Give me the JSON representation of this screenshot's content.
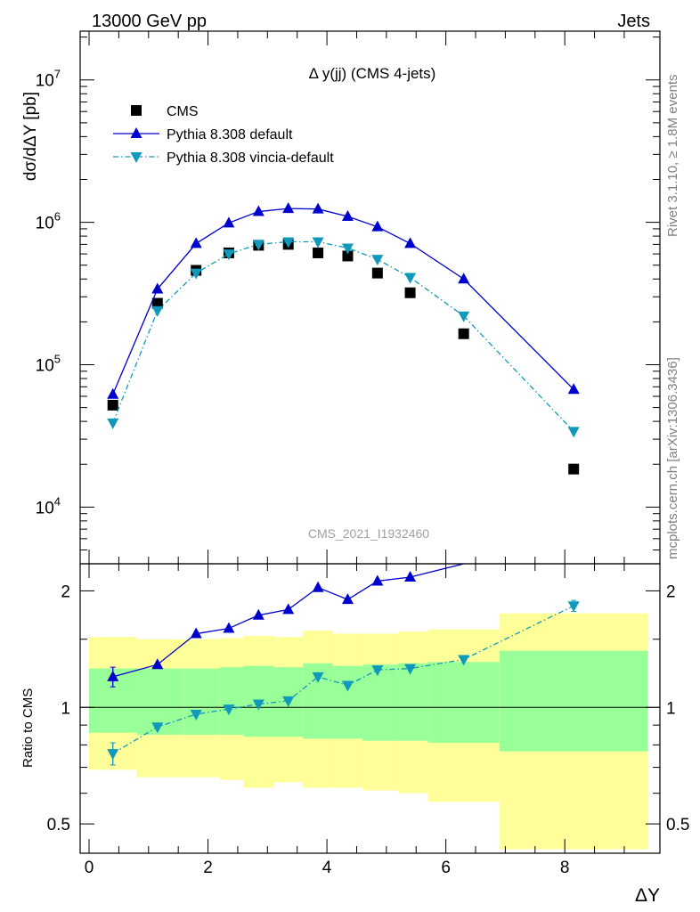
{
  "header": {
    "left": "13000 GeV pp",
    "right": "Jets"
  },
  "side_labels": {
    "rivet": "Rivet 3.1.10, ≥ 1.8M events",
    "mcplots": "mcplots.cern.ch [arXiv:1306.3436]"
  },
  "chart_data": [
    {
      "type": "scatter",
      "panel": "main",
      "title": "Δ y(jj) (CMS 4-jets)",
      "watermark": "CMS_2021_I1932460",
      "ylabel": "dσ/dΔY [pb]",
      "xlabel": "",
      "yscale": "log",
      "xlim": [
        -0.15,
        9.6
      ],
      "ylim": [
        4000,
        22000000
      ],
      "yticks": [
        {
          "value": 10000,
          "base": "10",
          "exp": "4"
        },
        {
          "value": 100000,
          "base": "10",
          "exp": "5"
        },
        {
          "value": 1000000,
          "base": "10",
          "exp": "6"
        },
        {
          "value": 10000000,
          "base": "10",
          "exp": "7"
        }
      ],
      "legend_position": "top-left",
      "series": [
        {
          "name": "CMS",
          "style": "points",
          "marker": "square",
          "color": "#000000",
          "x": [
            0.4,
            1.15,
            1.8,
            2.35,
            2.85,
            3.35,
            3.85,
            4.35,
            4.85,
            5.4,
            6.3,
            8.15
          ],
          "y": [
            52000,
            270000,
            460000,
            610000,
            690000,
            700000,
            610000,
            580000,
            440000,
            320000,
            165000,
            18500
          ]
        },
        {
          "name": "Pythia 8.308 default",
          "style": "solid",
          "marker": "triangle-up",
          "color": "#0000cc",
          "x": [
            0.4,
            1.15,
            1.8,
            2.35,
            2.85,
            3.35,
            3.85,
            4.35,
            4.85,
            5.4,
            6.3,
            8.15
          ],
          "y": [
            62000,
            340000,
            710000,
            990000,
            1190000,
            1250000,
            1240000,
            1100000,
            930000,
            710000,
            400000,
            67000
          ]
        },
        {
          "name": "Pythia 8.308 vincia-default",
          "style": "dashdot",
          "marker": "triangle-down",
          "color": "#1199bb",
          "x": [
            0.4,
            1.15,
            1.8,
            2.35,
            2.85,
            3.35,
            3.85,
            4.35,
            4.85,
            5.4,
            6.3,
            8.15
          ],
          "y": [
            39000,
            240000,
            440000,
            600000,
            700000,
            730000,
            730000,
            660000,
            550000,
            410000,
            220000,
            34000
          ]
        }
      ]
    },
    {
      "type": "scatter",
      "panel": "ratio",
      "ylabel": "Ratio to CMS",
      "xlabel": "ΔY",
      "yscale": "log",
      "xlim": [
        -0.15,
        9.6
      ],
      "ylim": [
        0.42,
        2.35
      ],
      "xticks": [
        0,
        2,
        4,
        6,
        8
      ],
      "yticks": [
        0.5,
        1,
        2
      ],
      "bands": {
        "bins": [
          {
            "lo": 0.0,
            "hi": 0.8,
            "y_lo": 0.69,
            "y_hi": 1.52,
            "g_lo": 0.86,
            "g_hi": 1.26
          },
          {
            "lo": 0.8,
            "hi": 1.6,
            "y_lo": 0.66,
            "y_hi": 1.5,
            "g_lo": 0.85,
            "g_hi": 1.26
          },
          {
            "lo": 1.6,
            "hi": 2.2,
            "y_lo": 0.66,
            "y_hi": 1.5,
            "g_lo": 0.85,
            "g_hi": 1.26
          },
          {
            "lo": 2.2,
            "hi": 2.6,
            "y_lo": 0.65,
            "y_hi": 1.51,
            "g_lo": 0.85,
            "g_hi": 1.27
          },
          {
            "lo": 2.6,
            "hi": 3.1,
            "y_lo": 0.62,
            "y_hi": 1.53,
            "g_lo": 0.84,
            "g_hi": 1.28
          },
          {
            "lo": 3.1,
            "hi": 3.6,
            "y_lo": 0.64,
            "y_hi": 1.52,
            "g_lo": 0.84,
            "g_hi": 1.27
          },
          {
            "lo": 3.6,
            "hi": 4.1,
            "y_lo": 0.62,
            "y_hi": 1.58,
            "g_lo": 0.83,
            "g_hi": 1.3
          },
          {
            "lo": 4.1,
            "hi": 4.6,
            "y_lo": 0.62,
            "y_hi": 1.55,
            "g_lo": 0.83,
            "g_hi": 1.28
          },
          {
            "lo": 4.6,
            "hi": 5.2,
            "y_lo": 0.61,
            "y_hi": 1.55,
            "g_lo": 0.82,
            "g_hi": 1.29
          },
          {
            "lo": 5.2,
            "hi": 5.7,
            "y_lo": 0.6,
            "y_hi": 1.57,
            "g_lo": 0.82,
            "g_hi": 1.3
          },
          {
            "lo": 5.7,
            "hi": 6.9,
            "y_lo": 0.57,
            "y_hi": 1.59,
            "g_lo": 0.81,
            "g_hi": 1.31
          },
          {
            "lo": 6.9,
            "hi": 9.4,
            "y_lo": 0.43,
            "y_hi": 1.75,
            "g_lo": 0.77,
            "g_hi": 1.4
          }
        ],
        "outer_color": "#ffff99",
        "inner_color": "#99ff99"
      },
      "series": [
        {
          "name": "Pythia 8.308 default",
          "style": "solid",
          "marker": "triangle-up",
          "color": "#0000cc",
          "x": [
            0.4,
            1.15,
            1.8,
            2.35,
            2.85,
            3.35,
            3.85,
            4.35,
            4.85,
            5.4,
            6.3
          ],
          "y": [
            1.2,
            1.29,
            1.55,
            1.6,
            1.73,
            1.79,
            2.04,
            1.9,
            2.12,
            2.17,
            2.36
          ],
          "err": [
            0.07,
            0,
            0,
            0,
            0,
            0,
            0,
            0,
            0,
            0,
            0
          ]
        },
        {
          "name": "Pythia 8.308 vincia-default",
          "style": "dashdot",
          "marker": "triangle-down",
          "color": "#1199bb",
          "x": [
            0.4,
            1.15,
            1.8,
            2.35,
            2.85,
            3.35,
            3.85,
            4.35,
            4.85,
            5.4,
            6.3,
            8.15
          ],
          "y": [
            0.76,
            0.89,
            0.96,
            0.99,
            1.02,
            1.04,
            1.2,
            1.14,
            1.25,
            1.26,
            1.33,
            1.83
          ],
          "err": [
            0.05,
            0,
            0,
            0,
            0,
            0,
            0,
            0,
            0,
            0,
            0,
            0.06
          ]
        }
      ]
    }
  ]
}
